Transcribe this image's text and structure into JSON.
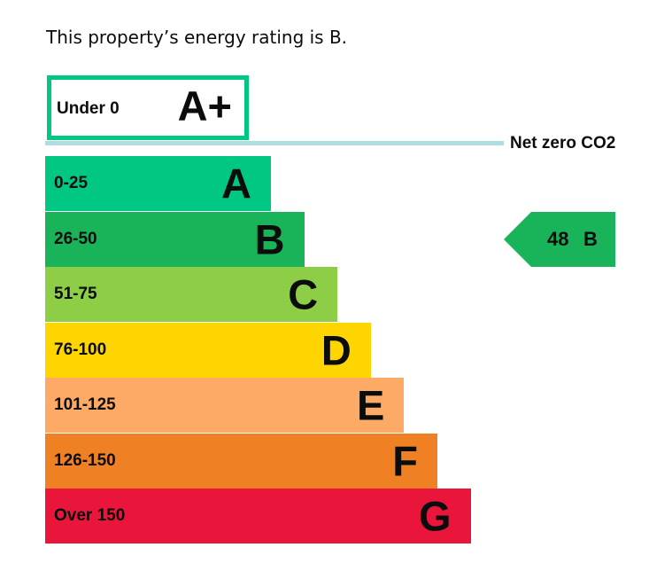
{
  "summary": "This property’s energy rating is B.",
  "chart_data": {
    "type": "bar",
    "title": "",
    "top_band": {
      "range": "Under 0",
      "letter": "A+",
      "color": "#00c781"
    },
    "net_zero": {
      "label": "Net zero CO2",
      "color": "#aedde3"
    },
    "bands": [
      {
        "range": "0-25",
        "letter": "A",
        "color": "#00c781"
      },
      {
        "range": "26-50",
        "letter": "B",
        "color": "#19b459"
      },
      {
        "range": "51-75",
        "letter": "C",
        "color": "#8dce46"
      },
      {
        "range": "76-100",
        "letter": "D",
        "color": "#ffd500"
      },
      {
        "range": "101-125",
        "letter": "E",
        "color": "#fcaa65"
      },
      {
        "range": "126-150",
        "letter": "F",
        "color": "#ef8023"
      },
      {
        "range": "Over 150",
        "letter": "G",
        "color": "#e9153b"
      }
    ],
    "current_rating": {
      "value": "48",
      "letter": "B",
      "band_index": 1,
      "color": "#19b459"
    }
  }
}
